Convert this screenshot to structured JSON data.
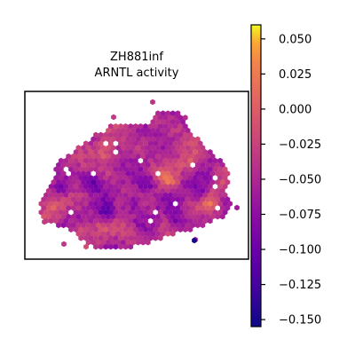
{
  "chart_data": {
    "type": "scatter",
    "title_line1": "ZH881inf",
    "title_line2": "ARNTL activity",
    "marker": "hexagon",
    "colormap": "plasma",
    "colorbar": {
      "min": -0.155,
      "max": 0.06,
      "ticks": [
        0.05,
        0.025,
        0.0,
        -0.025,
        -0.05,
        -0.075,
        -0.1,
        -0.125,
        -0.15
      ],
      "tick_labels": [
        "0.050",
        "0.025",
        "0.000",
        "−0.025",
        "−0.050",
        "−0.075",
        "−0.100",
        "−0.125",
        "−0.150"
      ]
    },
    "axes_visible": false,
    "value_range": [
      -0.155,
      0.06
    ]
  }
}
